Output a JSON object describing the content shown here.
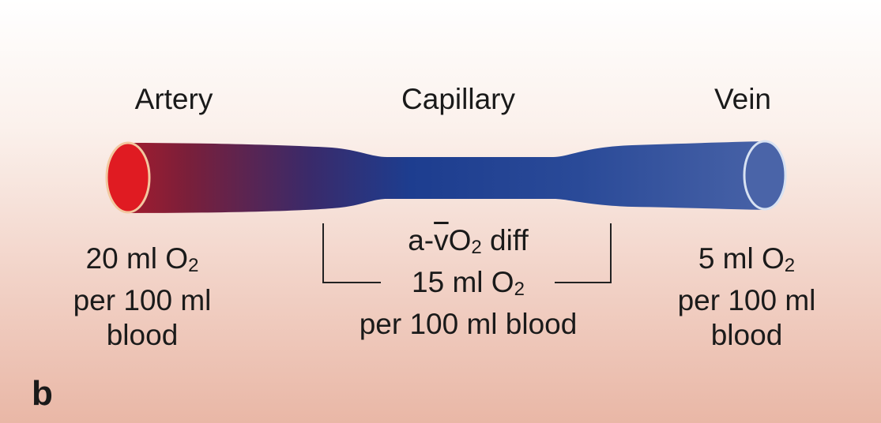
{
  "labels": {
    "artery": "Artery",
    "capillary": "Capillary",
    "vein": "Vein"
  },
  "artery_info": {
    "amount_prefix": "20 ml O",
    "amount_sub": "2",
    "line2": "per 100 ml",
    "line3": "blood"
  },
  "difference": {
    "prefix": "a-",
    "vbar": "v",
    "o": "O",
    "o_sub": "2",
    "suffix": " diff",
    "amount_prefix": "15 ml O",
    "amount_sub": "2",
    "line3": "per 100 ml blood"
  },
  "vein_info": {
    "amount_prefix": "5 ml O",
    "amount_sub": "2",
    "line2": "per 100 ml",
    "line3": "blood"
  },
  "panel_letter": "b",
  "colors": {
    "arterial": "#e01b22",
    "transition": "#7a1f3a",
    "capillary": "#1d3d8f",
    "venous": "#4a64a8",
    "rim": "#f2c8a0"
  }
}
